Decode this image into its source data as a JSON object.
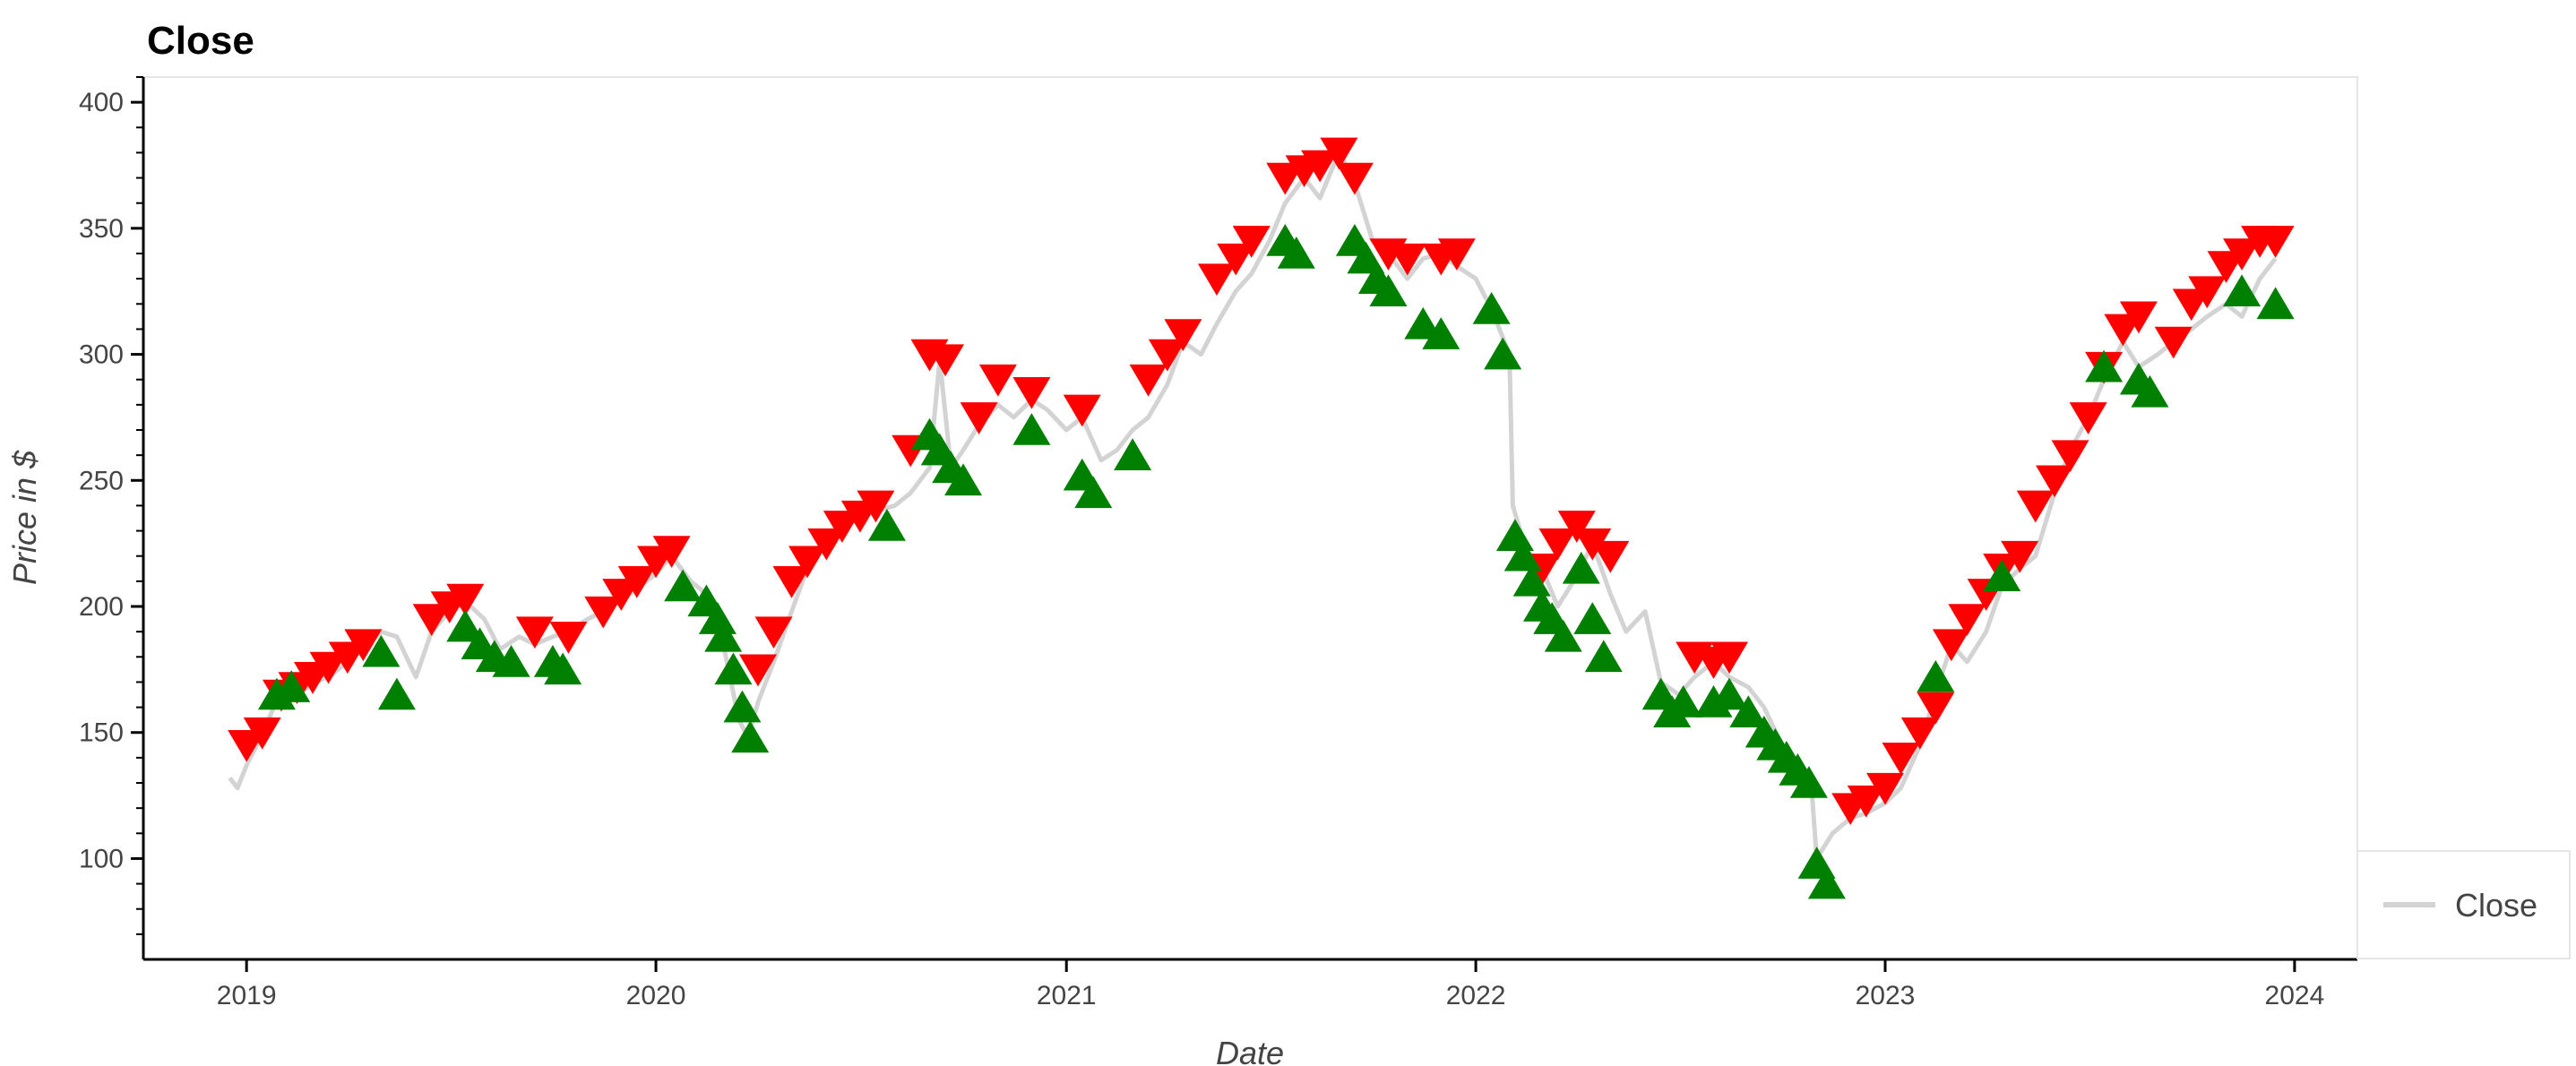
{
  "chart_data": {
    "type": "line",
    "title": "Close",
    "xlabel": "Date",
    "ylabel": "Price in $",
    "xlim": [
      "2018-10-01",
      "2024-02-26"
    ],
    "ylim": [
      60,
      410
    ],
    "x_ticks": [
      "2019-01-01",
      "2020-01-01",
      "2021-01-01",
      "2022-01-01",
      "2023-01-01",
      "2024-01-01"
    ],
    "x_tick_labels": [
      "2019",
      "2020",
      "2021",
      "2022",
      "2023",
      "2024"
    ],
    "y_ticks": [
      100,
      150,
      200,
      250,
      300,
      350,
      400
    ],
    "y_tick_labels": [
      "100",
      "150",
      "200",
      "250",
      "300",
      "350",
      "400"
    ],
    "legend": {
      "position": "bottom-right",
      "entries": [
        "Close"
      ]
    },
    "grid": false,
    "colors": {
      "line": "#d3d3d3",
      "buy": "#008000",
      "sell": "#ff0000",
      "axis": "#000000",
      "frame": "#e5e5e5"
    },
    "series": [
      {
        "name": "Close",
        "x": [
          "2018-12-17",
          "2018-12-24",
          "2019-01-02",
          "2019-01-14",
          "2019-01-28",
          "2019-02-04",
          "2019-02-18",
          "2019-03-04",
          "2019-03-18",
          "2019-04-01",
          "2019-04-15",
          "2019-05-01",
          "2019-05-15",
          "2019-06-01",
          "2019-06-15",
          "2019-07-01",
          "2019-07-15",
          "2019-08-01",
          "2019-08-15",
          "2019-09-01",
          "2019-09-15",
          "2019-10-01",
          "2019-10-15",
          "2019-11-01",
          "2019-11-15",
          "2019-12-01",
          "2019-12-15",
          "2020-01-01",
          "2020-01-15",
          "2020-02-01",
          "2020-02-15",
          "2020-03-01",
          "2020-03-15",
          "2020-03-23",
          "2020-04-01",
          "2020-04-15",
          "2020-05-01",
          "2020-05-15",
          "2020-06-01",
          "2020-06-15",
          "2020-07-01",
          "2020-07-15",
          "2020-08-01",
          "2020-08-15",
          "2020-09-01",
          "2020-09-10",
          "2020-09-20",
          "2020-10-01",
          "2020-10-15",
          "2020-11-01",
          "2020-11-15",
          "2020-12-01",
          "2020-12-15",
          "2021-01-01",
          "2021-01-15",
          "2021-02-01",
          "2021-02-15",
          "2021-03-01",
          "2021-03-15",
          "2021-04-01",
          "2021-04-15",
          "2021-05-01",
          "2021-05-15",
          "2021-06-01",
          "2021-06-15",
          "2021-07-01",
          "2021-07-15",
          "2021-08-01",
          "2021-08-15",
          "2021-09-01",
          "2021-09-15",
          "2021-10-01",
          "2021-10-15",
          "2021-11-01",
          "2021-11-15",
          "2021-12-01",
          "2021-12-15",
          "2022-01-01",
          "2022-01-15",
          "2022-01-31",
          "2022-02-03",
          "2022-02-15",
          "2022-03-01",
          "2022-03-15",
          "2022-04-01",
          "2022-04-15",
          "2022-05-01",
          "2022-05-15",
          "2022-06-01",
          "2022-06-15",
          "2022-07-01",
          "2022-07-15",
          "2022-08-01",
          "2022-08-15",
          "2022-09-01",
          "2022-09-15",
          "2022-10-01",
          "2022-10-15",
          "2022-10-27",
          "2022-11-01",
          "2022-11-15",
          "2022-12-01",
          "2022-12-15",
          "2023-01-01",
          "2023-01-15",
          "2023-02-01",
          "2023-02-15",
          "2023-03-01",
          "2023-03-15",
          "2023-04-01",
          "2023-04-15",
          "2023-05-01",
          "2023-05-15",
          "2023-06-01",
          "2023-06-15",
          "2023-07-01",
          "2023-07-15",
          "2023-08-01",
          "2023-08-15",
          "2023-09-01",
          "2023-09-15",
          "2023-10-01",
          "2023-10-15",
          "2023-11-01",
          "2023-11-15",
          "2023-12-01",
          "2023-12-15"
        ],
        "values": [
          132,
          128,
          138,
          148,
          163,
          168,
          166,
          170,
          173,
          178,
          183,
          190,
          188,
          172,
          190,
          198,
          202,
          195,
          183,
          188,
          185,
          188,
          190,
          195,
          198,
          203,
          207,
          213,
          220,
          210,
          205,
          185,
          155,
          148,
          162,
          178,
          198,
          215,
          228,
          232,
          235,
          238,
          240,
          245,
          255,
          298,
          255,
          262,
          272,
          280,
          275,
          282,
          278,
          270,
          275,
          258,
          262,
          270,
          275,
          288,
          305,
          300,
          312,
          325,
          332,
          345,
          360,
          370,
          362,
          380,
          368,
          345,
          340,
          330,
          338,
          340,
          335,
          330,
          318,
          300,
          240,
          222,
          215,
          200,
          212,
          225,
          205,
          190,
          198,
          170,
          165,
          172,
          178,
          172,
          168,
          160,
          145,
          138,
          130,
          100,
          110,
          116,
          118,
          122,
          128,
          145,
          165,
          185,
          178,
          190,
          208,
          215,
          220,
          245,
          262,
          275,
          290,
          305,
          295,
          300,
          305,
          310,
          315,
          320,
          315,
          330,
          338
        ]
      },
      {
        "name": "",
        "marker": "triangle-down",
        "x": [
          "2019-01-01",
          "2019-01-15",
          "2019-02-01",
          "2019-02-15",
          "2019-03-01",
          "2019-03-15",
          "2019-04-01",
          "2019-04-15",
          "2019-06-15",
          "2019-07-01",
          "2019-07-15",
          "2019-09-15",
          "2019-10-15",
          "2019-11-15",
          "2019-12-01",
          "2019-12-15",
          "2020-01-01",
          "2020-01-15",
          "2020-04-01",
          "2020-04-15",
          "2020-05-01",
          "2020-05-15",
          "2020-06-01",
          "2020-06-15",
          "2020-07-01",
          "2020-07-15",
          "2020-08-15",
          "2020-09-01",
          "2020-09-15",
          "2020-10-15",
          "2020-11-01",
          "2020-12-01",
          "2021-01-15",
          "2021-03-15",
          "2021-04-01",
          "2021-04-15",
          "2021-05-15",
          "2021-06-01",
          "2021-06-15",
          "2021-07-15",
          "2021-08-01",
          "2021-08-15",
          "2021-09-01",
          "2021-09-15",
          "2021-10-15",
          "2021-11-01",
          "2021-12-01",
          "2021-12-15",
          "2022-03-01",
          "2022-03-15",
          "2022-04-01",
          "2022-04-15",
          "2022-05-01",
          "2022-07-15",
          "2022-08-01",
          "2022-08-15",
          "2022-12-01",
          "2022-12-15",
          "2023-01-01",
          "2023-01-15",
          "2023-02-01",
          "2023-02-15",
          "2023-03-01",
          "2023-03-15",
          "2023-04-01",
          "2023-04-15",
          "2023-05-01",
          "2023-05-15",
          "2023-06-01",
          "2023-06-15",
          "2023-07-01",
          "2023-07-15",
          "2023-08-01",
          "2023-08-15",
          "2023-09-15",
          "2023-10-01",
          "2023-10-15",
          "2023-11-01",
          "2023-11-15",
          "2023-12-01",
          "2023-12-15"
        ],
        "values": [
          145,
          150,
          165,
          168,
          172,
          176,
          180,
          185,
          195,
          200,
          203,
          190,
          188,
          198,
          205,
          210,
          218,
          222,
          175,
          190,
          210,
          218,
          225,
          232,
          236,
          240,
          262,
          300,
          298,
          275,
          290,
          285,
          278,
          290,
          300,
          308,
          330,
          338,
          345,
          370,
          373,
          375,
          380,
          370,
          340,
          338,
          338,
          340,
          215,
          225,
          232,
          225,
          220,
          180,
          178,
          180,
          120,
          123,
          128,
          140,
          150,
          160,
          185,
          195,
          205,
          215,
          220,
          240,
          250,
          260,
          275,
          295,
          310,
          315,
          305,
          320,
          325,
          335,
          340,
          345,
          345
        ]
      },
      {
        "name": "",
        "marker": "triangle-up",
        "x": [
          "2019-01-28",
          "2019-02-10",
          "2019-05-01",
          "2019-05-15",
          "2019-07-15",
          "2019-07-28",
          "2019-08-10",
          "2019-08-25",
          "2019-10-01",
          "2019-10-10",
          "2020-01-25",
          "2020-02-15",
          "2020-02-25",
          "2020-03-01",
          "2020-03-10",
          "2020-03-18",
          "2020-03-25",
          "2020-07-25",
          "2020-09-01",
          "2020-09-10",
          "2020-09-20",
          "2020-10-01",
          "2020-12-01",
          "2021-01-15",
          "2021-01-25",
          "2021-03-01",
          "2021-07-15",
          "2021-07-25",
          "2021-09-15",
          "2021-09-25",
          "2021-10-05",
          "2021-10-15",
          "2021-11-15",
          "2021-12-01",
          "2022-01-15",
          "2022-01-25",
          "2022-02-05",
          "2022-02-12",
          "2022-02-20",
          "2022-03-01",
          "2022-03-10",
          "2022-03-20",
          "2022-04-05",
          "2022-04-15",
          "2022-04-25",
          "2022-06-15",
          "2022-06-25",
          "2022-07-05",
          "2022-08-01",
          "2022-08-15",
          "2022-09-01",
          "2022-09-15",
          "2022-09-25",
          "2022-10-05",
          "2022-10-15",
          "2022-10-25",
          "2022-11-01",
          "2022-11-10",
          "2023-02-15",
          "2023-04-15",
          "2023-07-15",
          "2023-08-15",
          "2023-08-25",
          "2023-11-15",
          "2023-12-15"
        ],
        "values": [
          165,
          168,
          182,
          165,
          192,
          185,
          180,
          178,
          178,
          175,
          208,
          202,
          195,
          188,
          175,
          160,
          148,
          232,
          268,
          262,
          255,
          250,
          270,
          252,
          245,
          260,
          345,
          340,
          345,
          338,
          330,
          325,
          312,
          308,
          318,
          300,
          228,
          220,
          210,
          200,
          195,
          188,
          215,
          195,
          180,
          165,
          158,
          162,
          162,
          165,
          158,
          150,
          145,
          140,
          135,
          130,
          98,
          90,
          172,
          212,
          295,
          290,
          285,
          325,
          320
        ]
      }
    ]
  }
}
